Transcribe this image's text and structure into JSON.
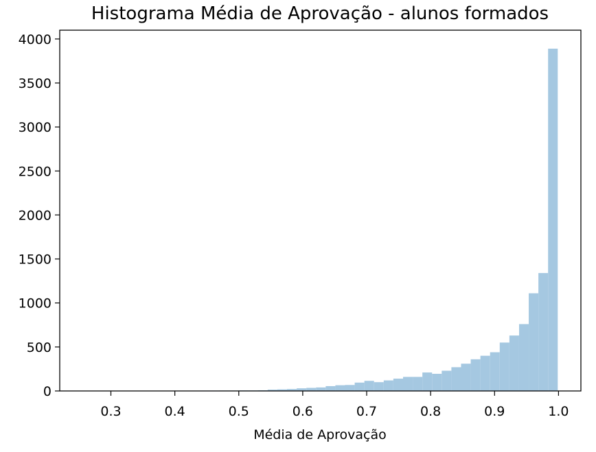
{
  "chart_data": {
    "type": "bar",
    "title": "Histograma Média de Aprovação - alunos formados",
    "xlabel": "Média de Aprovação",
    "ylabel": "",
    "xlim": [
      0.22,
      1.035
    ],
    "ylim": [
      0,
      4100
    ],
    "x_ticks": [
      0.3,
      0.4,
      0.5,
      0.6,
      0.7,
      0.8,
      0.9,
      1.0
    ],
    "x_tick_labels": [
      "0.3",
      "0.4",
      "0.5",
      "0.6",
      "0.7",
      "0.8",
      "0.9",
      "1.0"
    ],
    "y_ticks": [
      0,
      500,
      1000,
      1500,
      2000,
      2500,
      3000,
      3500,
      4000
    ],
    "y_tick_labels": [
      "0",
      "500",
      "1000",
      "1500",
      "2000",
      "2500",
      "3000",
      "3500",
      "4000"
    ],
    "grid": false,
    "bar_color": "#a5c8e1",
    "bin_width": 0.01512,
    "bin_edges_start": 0.2428,
    "values": [
      2,
      1,
      1,
      1,
      1,
      1,
      1,
      2,
      2,
      2,
      2,
      3,
      3,
      4,
      4,
      5,
      5,
      6,
      6,
      8,
      15,
      18,
      22,
      30,
      35,
      40,
      55,
      65,
      68,
      95,
      115,
      100,
      120,
      140,
      160,
      160,
      210,
      195,
      230,
      270,
      310,
      360,
      400,
      440,
      550,
      630,
      760,
      1110,
      1340,
      3890
    ]
  }
}
